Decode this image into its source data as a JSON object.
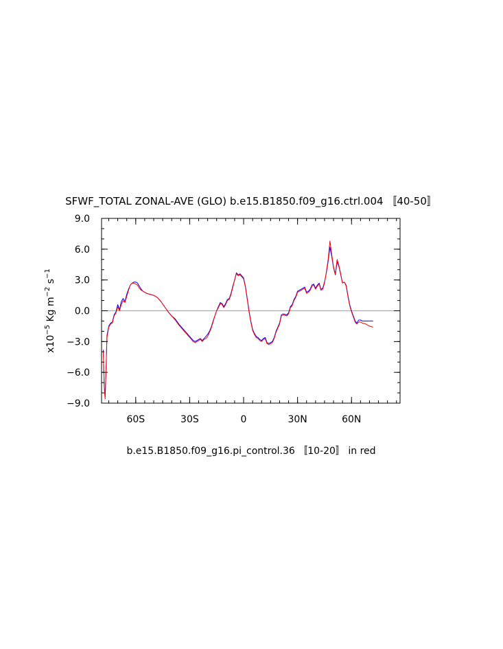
{
  "chart_data": {
    "type": "line",
    "title": "SFWF_TOTAL ZONAL-AVE (GLO) b.e15.B1850.f09_g16.ctrl.004 〚40-50〛",
    "subtitle": "b.e15.B1850.f09_g16.pi_control.36 〚10-20〛 in red",
    "ylabel": {
      "prefix": "x10",
      "exp1": "−5",
      "unit1": " Kg m",
      "exp2": "−2",
      "unit2": " s",
      "exp3": "−1"
    },
    "xlim": [
      -79,
      87
    ],
    "ylim": [
      -9,
      9
    ],
    "x_ticks": [
      {
        "value": -60,
        "label": "60S"
      },
      {
        "value": -30,
        "label": "30S"
      },
      {
        "value": 0,
        "label": "0"
      },
      {
        "value": 30,
        "label": "30N"
      },
      {
        "value": 60,
        "label": "60N"
      }
    ],
    "y_ticks": [
      {
        "value": 9,
        "label": "9.0"
      },
      {
        "value": 6,
        "label": "6.0"
      },
      {
        "value": 3,
        "label": "3.0"
      },
      {
        "value": 0,
        "label": "0.0"
      },
      {
        "value": -3,
        "label": "−3.0"
      },
      {
        "value": -6,
        "label": "−6.0"
      },
      {
        "value": -9,
        "label": "−9.0"
      }
    ],
    "reference_line": {
      "y": 0,
      "color": "#aaaaaa"
    },
    "series": [
      {
        "color": "#0000ff",
        "points": [
          [
            -78,
            -3.8
          ],
          [
            -77.5,
            -7.3
          ],
          [
            -77,
            -8.4
          ],
          [
            -76.5,
            -5.5
          ],
          [
            -76,
            -2.4
          ],
          [
            -75,
            -1.5
          ],
          [
            -74,
            -1.2
          ],
          [
            -73,
            -1.1
          ],
          [
            -72,
            -0.4
          ],
          [
            -71,
            -0.1
          ],
          [
            -70,
            0.6
          ],
          [
            -69,
            0.1
          ],
          [
            -68,
            0.9
          ],
          [
            -67,
            1.2
          ],
          [
            -66,
            0.9
          ],
          [
            -65,
            1.6
          ],
          [
            -64,
            2.1
          ],
          [
            -63,
            2.5
          ],
          [
            -62,
            2.7
          ],
          [
            -61,
            2.8
          ],
          [
            -60,
            2.8
          ],
          [
            -59,
            2.7
          ],
          [
            -58,
            2.4
          ],
          [
            -57,
            2.1
          ],
          [
            -56,
            1.9
          ],
          [
            -54,
            1.7
          ],
          [
            -52,
            1.6
          ],
          [
            -50,
            1.5
          ],
          [
            -48,
            1.3
          ],
          [
            -46,
            0.9
          ],
          [
            -44,
            0.4
          ],
          [
            -42,
            -0.1
          ],
          [
            -40,
            -0.5
          ],
          [
            -38,
            -0.8
          ],
          [
            -36,
            -1.3
          ],
          [
            -34,
            -1.7
          ],
          [
            -32,
            -2.1
          ],
          [
            -30,
            -2.5
          ],
          [
            -28,
            -2.9
          ],
          [
            -27,
            -3.0
          ],
          [
            -26,
            -2.9
          ],
          [
            -25,
            -2.8
          ],
          [
            -24,
            -2.7
          ],
          [
            -23,
            -2.9
          ],
          [
            -22,
            -2.7
          ],
          [
            -21,
            -2.5
          ],
          [
            -20,
            -2.3
          ],
          [
            -19,
            -2.0
          ],
          [
            -18,
            -1.6
          ],
          [
            -17,
            -1.0
          ],
          [
            -16,
            -0.5
          ],
          [
            -15,
            0.0
          ],
          [
            -14,
            0.4
          ],
          [
            -13,
            0.8
          ],
          [
            -12,
            0.7
          ],
          [
            -11,
            0.4
          ],
          [
            -10,
            0.7
          ],
          [
            -9,
            1.1
          ],
          [
            -8,
            1.2
          ],
          [
            -7,
            1.7
          ],
          [
            -6,
            2.4
          ],
          [
            -5,
            3.0
          ],
          [
            -4,
            3.7
          ],
          [
            -3,
            3.5
          ],
          [
            -2,
            3.6
          ],
          [
            -1,
            3.4
          ],
          [
            0,
            3.2
          ],
          [
            1,
            2.4
          ],
          [
            2,
            1.2
          ],
          [
            3,
            0.0
          ],
          [
            4,
            -1.0
          ],
          [
            5,
            -1.8
          ],
          [
            6,
            -2.2
          ],
          [
            7,
            -2.5
          ],
          [
            8,
            -2.6
          ],
          [
            9,
            -2.8
          ],
          [
            10,
            -2.9
          ],
          [
            11,
            -2.7
          ],
          [
            12,
            -2.6
          ],
          [
            13,
            -3.1
          ],
          [
            14,
            -3.2
          ],
          [
            15,
            -3.1
          ],
          [
            16,
            -3.0
          ],
          [
            17,
            -2.6
          ],
          [
            18,
            -2.0
          ],
          [
            19,
            -1.6
          ],
          [
            20,
            -1.2
          ],
          [
            21,
            -0.4
          ],
          [
            22,
            -0.3
          ],
          [
            24,
            -0.4
          ],
          [
            25,
            -0.2
          ],
          [
            26,
            0.4
          ],
          [
            27,
            0.6
          ],
          [
            28,
            1.1
          ],
          [
            29,
            1.4
          ],
          [
            30,
            1.9
          ],
          [
            31,
            2.0
          ],
          [
            32,
            2.1
          ],
          [
            33,
            2.2
          ],
          [
            34,
            2.3
          ],
          [
            35,
            1.8
          ],
          [
            36,
            1.9
          ],
          [
            37,
            2.1
          ],
          [
            38,
            2.5
          ],
          [
            39,
            2.6
          ],
          [
            40,
            2.2
          ],
          [
            41,
            2.5
          ],
          [
            42,
            2.7
          ],
          [
            43,
            2.1
          ],
          [
            44,
            2.2
          ],
          [
            45,
            2.8
          ],
          [
            46,
            3.7
          ],
          [
            47,
            4.8
          ],
          [
            48,
            6.2
          ],
          [
            49,
            5.3
          ],
          [
            50,
            4.2
          ],
          [
            51,
            3.5
          ],
          [
            52,
            4.8
          ],
          [
            53,
            4.3
          ],
          [
            54,
            3.5
          ],
          [
            55,
            2.7
          ],
          [
            56,
            2.8
          ],
          [
            57,
            2.5
          ],
          [
            58,
            1.5
          ],
          [
            59,
            0.6
          ],
          [
            60,
            0.0
          ],
          [
            61,
            -0.5
          ],
          [
            62,
            -1.0
          ],
          [
            63,
            -1.2
          ],
          [
            64,
            -0.9
          ],
          [
            65,
            -0.9
          ],
          [
            66,
            -1.0
          ],
          [
            70,
            -1.0
          ],
          [
            72,
            -1.0
          ]
        ]
      },
      {
        "color": "#ff0000",
        "points": [
          [
            -78,
            -3.9
          ],
          [
            -77.5,
            -7.5
          ],
          [
            -77,
            -8.6
          ],
          [
            -76.5,
            -5.6
          ],
          [
            -76,
            -2.6
          ],
          [
            -75,
            -1.6
          ],
          [
            -74,
            -1.3
          ],
          [
            -73,
            -1.2
          ],
          [
            -72,
            -0.5
          ],
          [
            -71,
            -0.2
          ],
          [
            -70,
            0.4
          ],
          [
            -69,
            0.0
          ],
          [
            -68,
            0.6
          ],
          [
            -67,
            1.0
          ],
          [
            -66,
            0.8
          ],
          [
            -65,
            1.4
          ],
          [
            -64,
            2.0
          ],
          [
            -63,
            2.5
          ],
          [
            -62,
            2.7
          ],
          [
            -61,
            2.7
          ],
          [
            -60,
            2.6
          ],
          [
            -59,
            2.5
          ],
          [
            -58,
            2.2
          ],
          [
            -57,
            2.0
          ],
          [
            -56,
            1.9
          ],
          [
            -54,
            1.7
          ],
          [
            -52,
            1.6
          ],
          [
            -50,
            1.5
          ],
          [
            -48,
            1.3
          ],
          [
            -46,
            0.9
          ],
          [
            -44,
            0.4
          ],
          [
            -42,
            -0.1
          ],
          [
            -40,
            -0.5
          ],
          [
            -38,
            -0.9
          ],
          [
            -36,
            -1.4
          ],
          [
            -34,
            -1.8
          ],
          [
            -32,
            -2.2
          ],
          [
            -30,
            -2.6
          ],
          [
            -28,
            -3.0
          ],
          [
            -27,
            -3.1
          ],
          [
            -26,
            -3.0
          ],
          [
            -25,
            -2.9
          ],
          [
            -24,
            -2.8
          ],
          [
            -23,
            -3.0
          ],
          [
            -22,
            -2.8
          ],
          [
            -21,
            -2.7
          ],
          [
            -20,
            -2.5
          ],
          [
            -19,
            -2.1
          ],
          [
            -18,
            -1.7
          ],
          [
            -17,
            -1.1
          ],
          [
            -16,
            -0.5
          ],
          [
            -15,
            0.0
          ],
          [
            -14,
            0.3
          ],
          [
            -13,
            0.7
          ],
          [
            -12,
            0.6
          ],
          [
            -11,
            0.3
          ],
          [
            -10,
            0.6
          ],
          [
            -9,
            1.0
          ],
          [
            -8,
            1.1
          ],
          [
            -7,
            1.6
          ],
          [
            -6,
            2.3
          ],
          [
            -5,
            3.0
          ],
          [
            -4,
            3.6
          ],
          [
            -3,
            3.4
          ],
          [
            -2,
            3.5
          ],
          [
            -1,
            3.3
          ],
          [
            0,
            3.1
          ],
          [
            1,
            2.3
          ],
          [
            2,
            1.1
          ],
          [
            3,
            -0.1
          ],
          [
            4,
            -1.1
          ],
          [
            5,
            -1.9
          ],
          [
            6,
            -2.3
          ],
          [
            7,
            -2.6
          ],
          [
            8,
            -2.7
          ],
          [
            9,
            -2.9
          ],
          [
            10,
            -3.0
          ],
          [
            11,
            -2.8
          ],
          [
            12,
            -2.7
          ],
          [
            13,
            -3.2
          ],
          [
            14,
            -3.3
          ],
          [
            15,
            -3.2
          ],
          [
            16,
            -3.1
          ],
          [
            17,
            -2.7
          ],
          [
            18,
            -2.1
          ],
          [
            19,
            -1.7
          ],
          [
            20,
            -1.3
          ],
          [
            21,
            -0.5
          ],
          [
            22,
            -0.4
          ],
          [
            24,
            -0.5
          ],
          [
            25,
            -0.3
          ],
          [
            26,
            0.3
          ],
          [
            27,
            0.5
          ],
          [
            28,
            1.0
          ],
          [
            29,
            1.3
          ],
          [
            30,
            1.8
          ],
          [
            31,
            1.9
          ],
          [
            32,
            2.0
          ],
          [
            33,
            2.1
          ],
          [
            34,
            2.2
          ],
          [
            35,
            1.7
          ],
          [
            36,
            1.8
          ],
          [
            37,
            2.0
          ],
          [
            38,
            2.4
          ],
          [
            39,
            2.5
          ],
          [
            40,
            2.1
          ],
          [
            41,
            2.4
          ],
          [
            42,
            2.6
          ],
          [
            43,
            2.0
          ],
          [
            44,
            2.1
          ],
          [
            45,
            2.7
          ],
          [
            46,
            3.8
          ],
          [
            47,
            5.0
          ],
          [
            48,
            6.8
          ],
          [
            49,
            5.5
          ],
          [
            50,
            4.3
          ],
          [
            51,
            3.6
          ],
          [
            52,
            5.0
          ],
          [
            53,
            4.4
          ],
          [
            54,
            3.6
          ],
          [
            55,
            2.7
          ],
          [
            56,
            2.8
          ],
          [
            57,
            2.4
          ],
          [
            58,
            1.4
          ],
          [
            59,
            0.5
          ],
          [
            60,
            -0.1
          ],
          [
            61,
            -0.6
          ],
          [
            62,
            -1.1
          ],
          [
            63,
            -1.3
          ],
          [
            64,
            -1.1
          ],
          [
            65,
            -1.1
          ],
          [
            66,
            -1.2
          ],
          [
            68,
            -1.3
          ],
          [
            70,
            -1.5
          ],
          [
            72,
            -1.6
          ]
        ]
      }
    ]
  }
}
